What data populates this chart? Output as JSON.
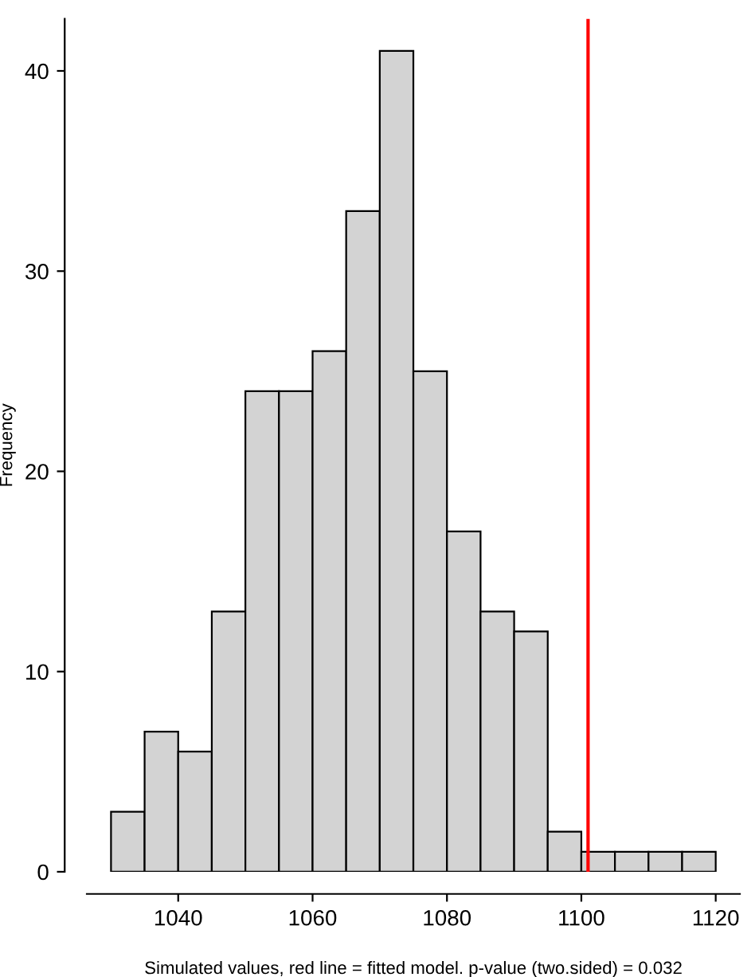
{
  "chart_data": {
    "type": "histogram",
    "xlabel": "Simulated values, red line = fitted model. p-value (two.sided) = 0.032",
    "ylabel": "Frequency",
    "bins": [
      1030,
      1035,
      1040,
      1045,
      1050,
      1055,
      1060,
      1065,
      1070,
      1075,
      1080,
      1085,
      1090,
      1095,
      1100,
      1105,
      1110,
      1115,
      1120
    ],
    "values": [
      3,
      7,
      6,
      13,
      24,
      24,
      26,
      33,
      41,
      25,
      17,
      13,
      12,
      2,
      1,
      1,
      1,
      1
    ],
    "color": "#d3d3d3",
    "xlim": [
      1026.4,
      1123.6
    ],
    "ylim": [
      0,
      42.6
    ],
    "xticks": [
      1040,
      1060,
      1080,
      1100,
      1120
    ],
    "yticks": [
      0,
      10,
      20,
      30,
      40
    ],
    "ref_lines": [
      {
        "axis": "x",
        "value": 1101,
        "color": "#ff0000"
      }
    ],
    "grid": false
  }
}
